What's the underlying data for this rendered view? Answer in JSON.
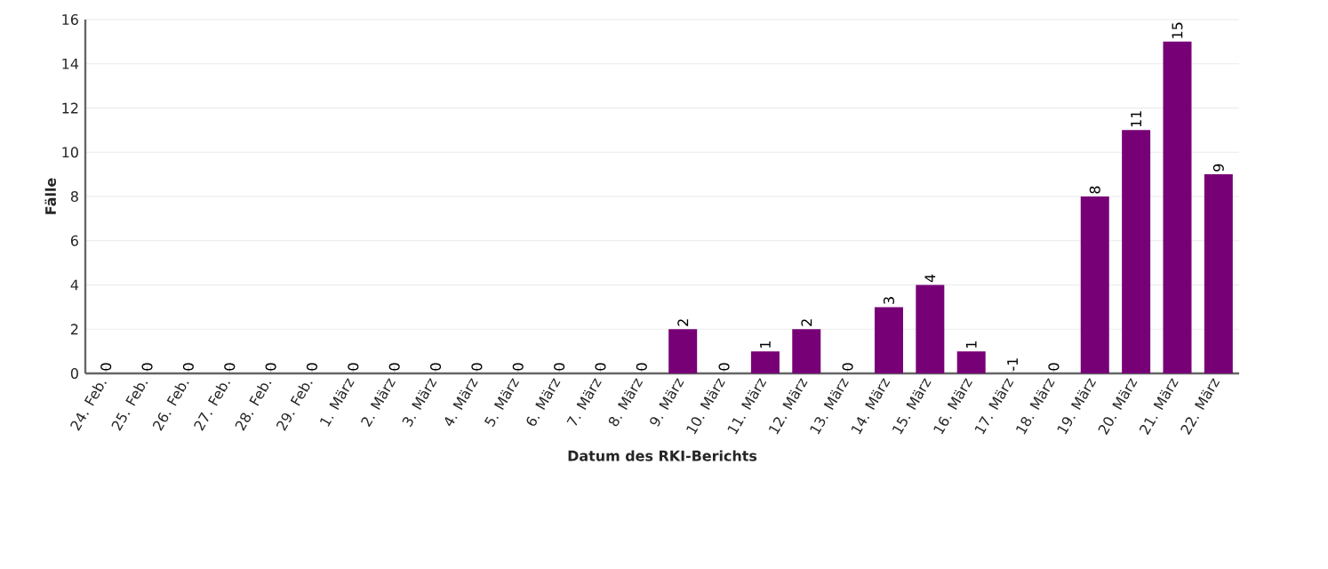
{
  "chart_data": {
    "type": "bar",
    "xlabel": "Datum des RKI-Berichts",
    "ylabel": "Fälle",
    "categories": [
      "24. Feb.",
      "25. Feb.",
      "26. Feb.",
      "27. Feb.",
      "28. Feb.",
      "29. Feb.",
      "1. März",
      "2. März",
      "3. März",
      "4. März",
      "5. März",
      "6. März",
      "7. März",
      "8. März",
      "9. März",
      "10. März",
      "11. März",
      "12. März",
      "13. März",
      "14. März",
      "15. März",
      "16. März",
      "17. März",
      "18. März",
      "19. März",
      "20. März",
      "21. März",
      "22. März"
    ],
    "values": [
      0,
      0,
      0,
      0,
      0,
      0,
      0,
      0,
      0,
      0,
      0,
      0,
      0,
      0,
      2,
      0,
      1,
      2,
      0,
      3,
      4,
      1,
      null,
      0,
      8,
      11,
      15,
      9
    ],
    "value_labels": [
      "0",
      "0",
      "0",
      "0",
      "0",
      "0",
      "0",
      "0",
      "0",
      "0",
      "0",
      "0",
      "0",
      "0",
      "2",
      "0",
      "1",
      "2",
      "0",
      "3",
      "4",
      "1",
      "-1",
      "0",
      "8",
      "11",
      "15",
      "9"
    ],
    "color": "#770077",
    "ylim": [
      0,
      16
    ],
    "yticks": [
      0,
      2,
      4,
      6,
      8,
      10,
      12,
      14,
      16
    ],
    "grid": "y"
  }
}
